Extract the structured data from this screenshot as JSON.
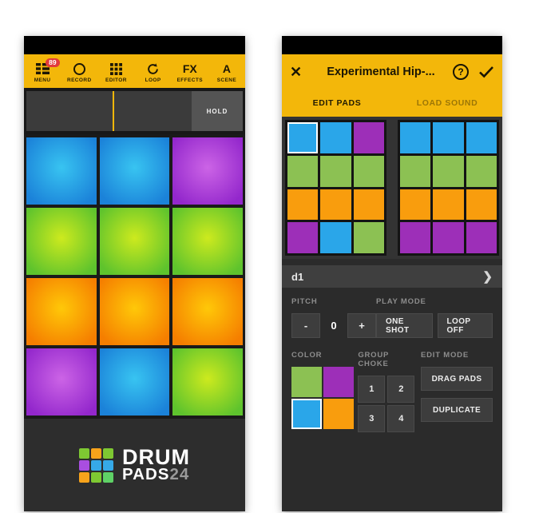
{
  "left_screen": {
    "toolbar": {
      "items": [
        {
          "id": "menu",
          "label": "MENU",
          "icon": "menu-icon",
          "badge": "89"
        },
        {
          "id": "record",
          "label": "RECORD",
          "icon": "record-icon"
        },
        {
          "id": "editor",
          "label": "EDITOR",
          "icon": "grid-icon"
        },
        {
          "id": "loop",
          "label": "LOOP",
          "icon": "loop-icon"
        },
        {
          "id": "effects",
          "label": "EFFECTS",
          "icon": "fx-icon",
          "glyph": "FX"
        },
        {
          "id": "scene",
          "label": "SCENE",
          "icon": "scene-icon",
          "glyph": "A"
        }
      ]
    },
    "hold_button": "HOLD",
    "pads": [
      [
        "blue",
        "blue",
        "purple"
      ],
      [
        "green",
        "green",
        "green"
      ],
      [
        "orange",
        "orange",
        "orange"
      ],
      [
        "purple",
        "blue",
        "green"
      ]
    ],
    "logo": {
      "line1": "DRUM",
      "line2": "PADS",
      "suffix": "24",
      "tiles": [
        "#7ec832",
        "#f7a31b",
        "#7ec832",
        "#a94ee0",
        "#36a9e8",
        "#36a9e8",
        "#f7a31b",
        "#7ec832",
        "#5fd166"
      ]
    }
  },
  "right_screen": {
    "header": {
      "close_icon": "✕",
      "title": "Experimental Hip-...",
      "help_icon": "?",
      "tabs": [
        {
          "label": "EDIT PADS",
          "active": true
        },
        {
          "label": "LOAD SOUND",
          "active": false
        }
      ]
    },
    "scene_grids": {
      "left": [
        [
          "blue",
          "blue",
          "purple"
        ],
        [
          "green",
          "green",
          "green"
        ],
        [
          "orange",
          "orange",
          "orange"
        ],
        [
          "purple",
          "blue",
          "green"
        ]
      ],
      "right": [
        [
          "blue",
          "blue",
          "blue"
        ],
        [
          "green",
          "green",
          "green"
        ],
        [
          "orange",
          "orange",
          "orange"
        ],
        [
          "purple",
          "purple",
          "purple"
        ]
      ],
      "selected": {
        "grid": "left",
        "row": 0,
        "col": 0
      }
    },
    "sample_row": {
      "name": "d1",
      "chevron": "❯"
    },
    "controls": {
      "pitch": {
        "label": "PITCH",
        "decrement": "-",
        "value": "0",
        "increment": "+"
      },
      "play_mode": {
        "label": "PLAY MODE",
        "buttons": [
          "ONE SHOT",
          "LOOP OFF"
        ]
      },
      "color": {
        "label": "COLOR",
        "swatches": [
          "green",
          "purple",
          "blue",
          "orange"
        ],
        "selected_index": 2
      },
      "group_choke": {
        "label": "GROUP CHOKE",
        "buttons": [
          "1",
          "2",
          "3",
          "4"
        ]
      },
      "edit_mode": {
        "label": "EDIT MODE",
        "buttons": [
          "DRAG PADS",
          "DUPLICATE"
        ]
      }
    }
  },
  "colors": {
    "accent_yellow": "#f3b70a",
    "badge_red": "#e23b3b",
    "pad_flat": {
      "blue": "#2aa6e9",
      "green": "#8cc153",
      "orange": "#f99d0d",
      "purple": "#9d2fb8"
    },
    "pad_gradient": {
      "blue": [
        "#38c4f1",
        "#1b82d9"
      ],
      "green": [
        "#cdea1e",
        "#5ec32d"
      ],
      "orange": [
        "#ffc808",
        "#f57e00"
      ],
      "purple": [
        "#cc64e6",
        "#9327cc"
      ]
    }
  }
}
